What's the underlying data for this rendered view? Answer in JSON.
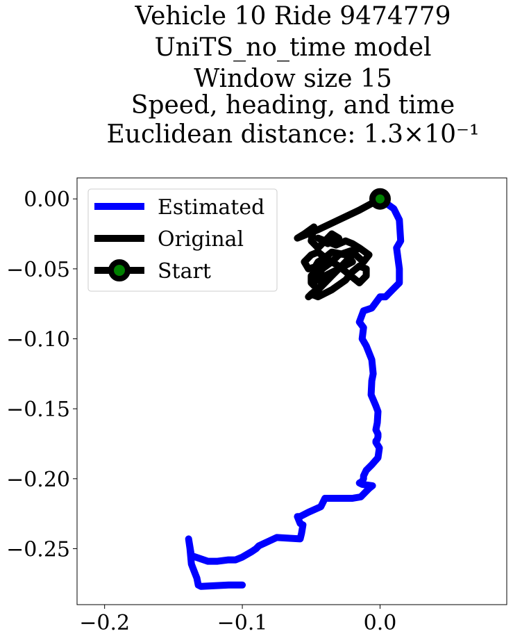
{
  "chart_data": {
    "type": "line",
    "title_lines": [
      "Vehicle 10 Ride 9474779",
      "UniTS_no_time model",
      "Window size 15",
      "Speed, heading, and time",
      "Euclidean distance: 1.3×10⁻¹"
    ],
    "xlabel": "",
    "ylabel": "",
    "xlim": [
      -0.22,
      0.092
    ],
    "ylim": [
      -0.29,
      0.015
    ],
    "xticks": [
      -0.2,
      -0.1,
      0.0
    ],
    "xtick_labels": [
      "−0.2",
      "−0.1",
      "0.0"
    ],
    "yticks": [
      0.0,
      -0.05,
      -0.1,
      -0.15,
      -0.2,
      -0.25
    ],
    "ytick_labels": [
      "0.00",
      "−0.05",
      "−0.10",
      "−0.15",
      "−0.20",
      "−0.25"
    ],
    "grid": false,
    "legend_position": "upper-left",
    "series": [
      {
        "name": "Estimated",
        "color": "#0000ff",
        "x": [
          0.0,
          0.01,
          0.014,
          0.015,
          0.012,
          0.014,
          0.014,
          0.009,
          0.004,
          0.0,
          -0.006,
          -0.012,
          -0.015,
          -0.012,
          -0.013,
          -0.01,
          -0.008,
          -0.006,
          -0.005,
          -0.006,
          -0.0065,
          -0.003,
          -0.0015,
          -0.002,
          -0.003,
          -0.0015,
          -0.0015,
          -0.002,
          -0.003,
          -0.003,
          -0.0005,
          -0.0015,
          -0.006,
          -0.01,
          -0.012,
          -0.012,
          -0.013,
          -0.015,
          -0.013,
          -0.0055,
          -0.008,
          -0.014,
          -0.02,
          -0.04,
          -0.043,
          -0.052,
          -0.058,
          -0.06,
          -0.058,
          -0.056,
          -0.057,
          -0.058,
          -0.075,
          -0.088,
          -0.09,
          -0.093,
          -0.1,
          -0.105,
          -0.11,
          -0.118,
          -0.125,
          -0.137,
          -0.139,
          -0.138,
          -0.137,
          -0.135,
          -0.133,
          -0.132,
          -0.13,
          -0.11,
          -0.1
        ],
        "y": [
          0.0,
          -0.007,
          -0.015,
          -0.03,
          -0.035,
          -0.05,
          -0.06,
          -0.065,
          -0.07,
          -0.07,
          -0.078,
          -0.08,
          -0.088,
          -0.092,
          -0.1,
          -0.105,
          -0.11,
          -0.115,
          -0.125,
          -0.13,
          -0.14,
          -0.148,
          -0.152,
          -0.16,
          -0.165,
          -0.168,
          -0.17,
          -0.172,
          -0.173,
          -0.174,
          -0.178,
          -0.185,
          -0.19,
          -0.194,
          -0.198,
          -0.2,
          -0.202,
          -0.203,
          -0.204,
          -0.205,
          -0.207,
          -0.213,
          -0.214,
          -0.214,
          -0.22,
          -0.224,
          -0.227,
          -0.227,
          -0.232,
          -0.233,
          -0.239,
          -0.243,
          -0.242,
          -0.248,
          -0.25,
          -0.252,
          -0.256,
          -0.258,
          -0.258,
          -0.259,
          -0.259,
          -0.255,
          -0.243,
          -0.25,
          -0.261,
          -0.266,
          -0.271,
          -0.276,
          -0.277,
          -0.276,
          -0.276
        ]
      },
      {
        "name": "Original",
        "color": "#000000",
        "x": [
          0.0,
          -0.015,
          -0.03,
          -0.045,
          -0.06,
          -0.055,
          -0.048,
          -0.05,
          -0.045,
          -0.04,
          -0.035,
          -0.03,
          -0.038,
          -0.045,
          -0.032,
          -0.025,
          -0.02,
          -0.015,
          -0.008,
          -0.012,
          -0.02,
          -0.015,
          -0.03,
          -0.035,
          -0.04,
          -0.045,
          -0.05,
          -0.055,
          -0.052,
          -0.045,
          -0.04,
          -0.045,
          -0.05,
          -0.05,
          -0.045,
          -0.04,
          -0.03,
          -0.02,
          -0.025,
          -0.035,
          -0.04,
          -0.045,
          -0.048,
          -0.044,
          -0.04,
          -0.045,
          -0.05,
          -0.045,
          -0.035,
          -0.025,
          -0.02,
          -0.015,
          -0.01,
          -0.01,
          -0.015,
          -0.025,
          -0.03,
          -0.035,
          -0.042,
          -0.045,
          -0.048,
          -0.05,
          -0.045,
          -0.052,
          -0.05,
          -0.04,
          -0.035,
          -0.03,
          -0.025,
          -0.02
        ],
        "y": [
          0.0,
          -0.008,
          -0.015,
          -0.022,
          -0.028,
          -0.025,
          -0.02,
          -0.03,
          -0.035,
          -0.03,
          -0.025,
          -0.028,
          -0.032,
          -0.028,
          -0.033,
          -0.03,
          -0.032,
          -0.035,
          -0.04,
          -0.045,
          -0.038,
          -0.035,
          -0.04,
          -0.045,
          -0.042,
          -0.038,
          -0.04,
          -0.045,
          -0.05,
          -0.048,
          -0.045,
          -0.05,
          -0.055,
          -0.06,
          -0.058,
          -0.055,
          -0.05,
          -0.045,
          -0.04,
          -0.038,
          -0.042,
          -0.045,
          -0.05,
          -0.055,
          -0.06,
          -0.065,
          -0.068,
          -0.07,
          -0.065,
          -0.058,
          -0.052,
          -0.048,
          -0.05,
          -0.055,
          -0.06,
          -0.052,
          -0.048,
          -0.045,
          -0.05,
          -0.055,
          -0.058,
          -0.06,
          -0.065,
          -0.07,
          -0.068,
          -0.06,
          -0.055,
          -0.05,
          -0.045,
          -0.04
        ]
      }
    ],
    "start_point": {
      "name": "Start",
      "x": 0.0,
      "y": 0.0,
      "marker_face_color": "#008000",
      "marker_edge_color": "#000000"
    }
  }
}
